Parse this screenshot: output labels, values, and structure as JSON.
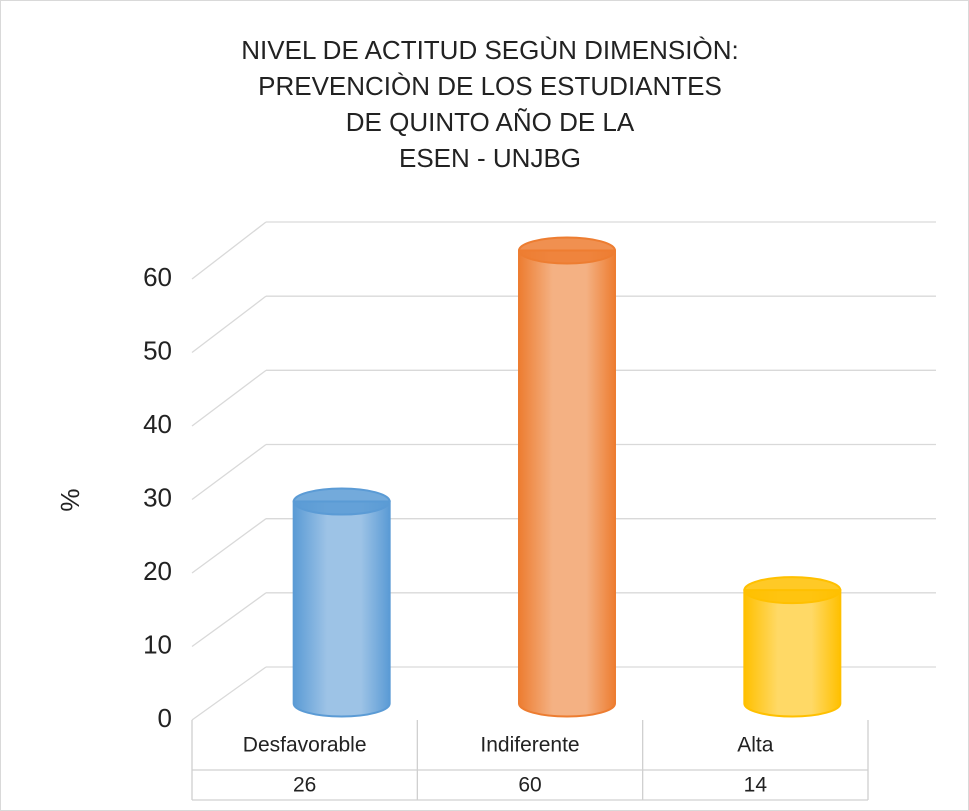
{
  "chart_data": {
    "type": "bar3d",
    "title": [
      "NIVEL DE ACTITUD SEGÙN DIMENSIÒN:",
      "PREVENCIÒN DE LOS ESTUDIANTES",
      "DE QUINTO AÑO DE LA",
      "ESEN - UNJBG"
    ],
    "y_label": "%",
    "categories": [
      "Desfavorable",
      "Indiferente",
      "Alta"
    ],
    "values": [
      26,
      60,
      14
    ],
    "colors": [
      "#9dc3e6",
      "#f4b183",
      "#ffd966"
    ],
    "edge_colors": [
      "#5b9bd5",
      "#ed7d31",
      "#ffc000"
    ],
    "ylim": [
      0,
      60
    ],
    "yticks": [
      0,
      10,
      20,
      30,
      40,
      50,
      60
    ],
    "grid": true
  }
}
